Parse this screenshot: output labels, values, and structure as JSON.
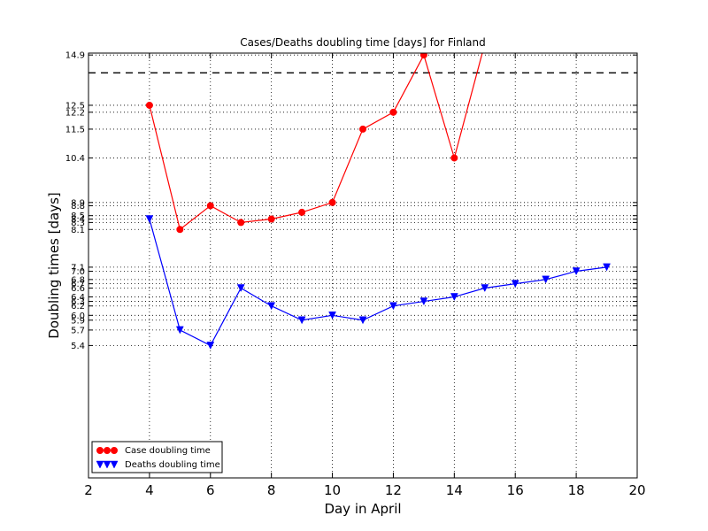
{
  "chart_data": {
    "type": "line",
    "title": "Cases/Deaths doubling time [days] for Finland",
    "xlabel": "Day in April",
    "ylabel": "Doubling times [days]",
    "yscale": "log",
    "xlim": [
      2,
      20
    ],
    "ylim": [
      3.4,
      15.0
    ],
    "grid": true,
    "legend_position": "bottom-left",
    "xticks": [
      2,
      4,
      6,
      8,
      10,
      12,
      14,
      16,
      18,
      20
    ],
    "yticks": [
      14.9,
      12.5,
      12.2,
      11.5,
      10.4,
      8.9,
      8.8,
      8.5,
      8.4,
      8.3,
      8.1,
      7.1,
      7.0,
      6.8,
      6.7,
      6.6,
      6.4,
      6.3,
      6.2,
      6.0,
      5.9,
      5.7,
      5.4
    ],
    "reference_line": 14.0,
    "series": [
      {
        "name": "Case doubling time",
        "color": "#ff0000",
        "marker": "circle",
        "x": [
          4,
          5,
          6,
          7,
          8,
          9,
          10,
          11,
          12,
          13,
          14,
          15
        ],
        "y": [
          12.5,
          8.1,
          8.8,
          8.3,
          8.4,
          8.6,
          8.9,
          11.5,
          12.2,
          14.9,
          10.4,
          15.5
        ]
      },
      {
        "name": "Deaths doubling time",
        "color": "#0000ff",
        "marker": "triangle-down",
        "x": [
          4,
          5,
          6,
          7,
          8,
          9,
          10,
          11,
          12,
          13,
          14,
          15,
          16,
          17,
          18,
          19
        ],
        "y": [
          8.4,
          5.7,
          5.4,
          6.6,
          6.2,
          5.9,
          6.0,
          5.9,
          6.2,
          6.3,
          6.4,
          6.6,
          6.7,
          6.8,
          7.0,
          7.1
        ]
      }
    ]
  }
}
